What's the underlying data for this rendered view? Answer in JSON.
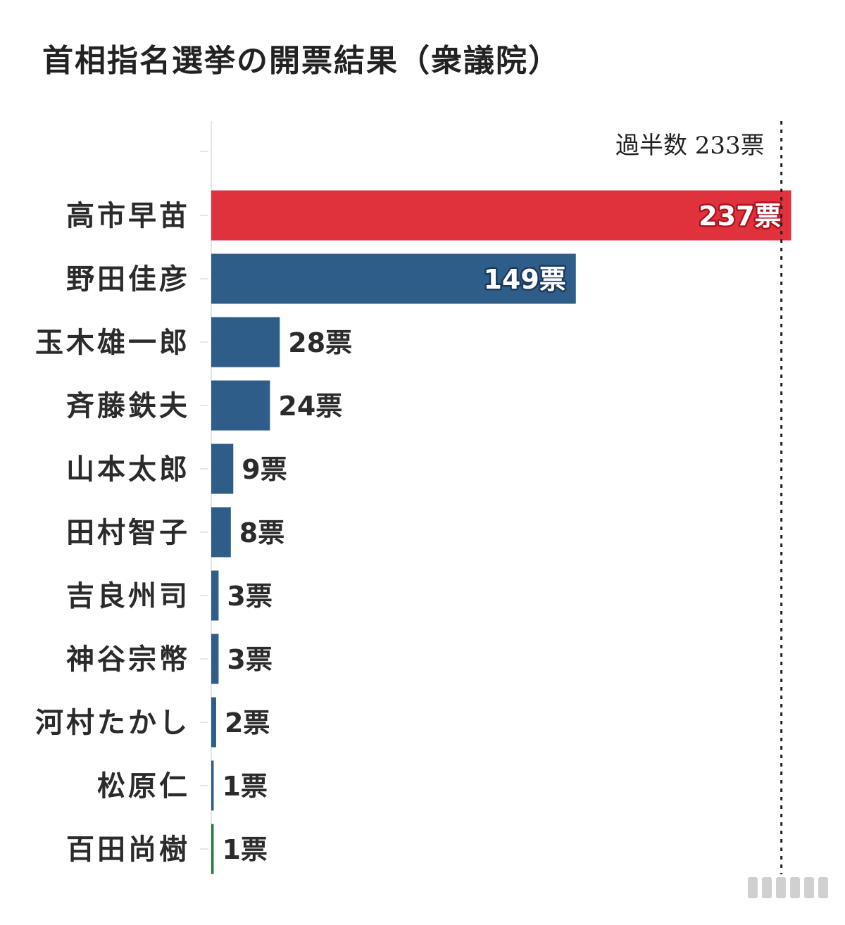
{
  "title": "首相指名選挙の開票結果（衆議院）",
  "chart_data": {
    "type": "bar",
    "orientation": "horizontal",
    "title": "首相指名選挙の開票結果（衆議院）",
    "categories": [
      "高市早苗",
      "野田佳彦",
      "玉木雄一郎",
      "斉藤鉄夫",
      "山本太郎",
      "田村智子",
      "吉良州司",
      "神谷宗幣",
      "河村たかし",
      "松原仁",
      "百田尚樹"
    ],
    "values": [
      237,
      149,
      28,
      24,
      9,
      8,
      3,
      3,
      2,
      1,
      1
    ],
    "value_labels": [
      "237票",
      "149票",
      "28票",
      "24票",
      "9票",
      "8票",
      "3票",
      "3票",
      "2票",
      "1票",
      "1票"
    ],
    "bar_colors": [
      "#e0323c",
      "#2f5d8a",
      "#2f5d8a",
      "#2f5d8a",
      "#2f5d8a",
      "#2f5d8a",
      "#2f5d8a",
      "#2f5d8a",
      "#2f5d8a",
      "#2f5d8a",
      "#2a7a3a"
    ],
    "xlim": [
      0,
      237
    ],
    "reference_line": {
      "value": 233,
      "label": "過半数 233票",
      "style": "dotted"
    },
    "grid": false,
    "legend": "none",
    "xlabel": "",
    "ylabel": ""
  },
  "colors": {
    "highlight": "#e0323c",
    "primary": "#2f5d8a",
    "text": "#222222"
  }
}
